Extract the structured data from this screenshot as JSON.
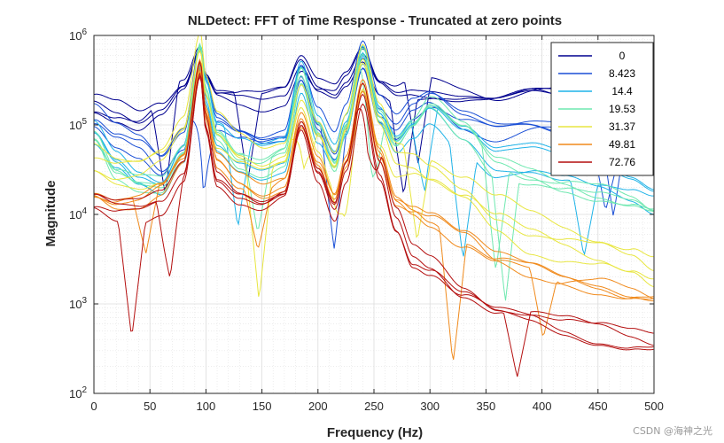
{
  "chart_data": {
    "type": "line",
    "title": "NLDetect: FFT of Time Response - Truncated at zero points",
    "xlabel": "Frequency (Hz)",
    "ylabel": "Magnitude",
    "xlim": [
      0,
      500
    ],
    "ylim_log10": [
      2,
      6
    ],
    "xscale": "linear",
    "yscale": "log",
    "grid": true,
    "minor_grid": true,
    "x_ticks": [
      0,
      50,
      100,
      150,
      200,
      250,
      300,
      350,
      400,
      450,
      500
    ],
    "x_tick_labels": [
      "0",
      "50",
      "100",
      "150",
      "200",
      "250",
      "300",
      "350",
      "400",
      "450",
      "500"
    ],
    "y_ticks": [
      2,
      3,
      4,
      5,
      6
    ],
    "y_tick_labels": [
      {
        "base": "10",
        "exp": "2"
      },
      {
        "base": "10",
        "exp": "3"
      },
      {
        "base": "10",
        "exp": "4"
      },
      {
        "base": "10",
        "exp": "5"
      },
      {
        "base": "10",
        "exp": "6"
      }
    ],
    "legend_position": "top-right",
    "legend": [
      {
        "label": "0",
        "color": "#00008f"
      },
      {
        "label": "8.423",
        "color": "#1a4fd6"
      },
      {
        "label": "14.4",
        "color": "#1fb3e8"
      },
      {
        "label": "19.53",
        "color": "#6fe8b0"
      },
      {
        "label": "31.37",
        "color": "#e8e640"
      },
      {
        "label": "49.81",
        "color": "#f08a1c"
      },
      {
        "label": "72.76",
        "color": "#b40f0f"
      }
    ],
    "series_note": "Approximate log10(magnitude) envelopes per amplitude level, sampled at the x positions below",
    "x": [
      0,
      20,
      40,
      60,
      80,
      95,
      100,
      110,
      130,
      150,
      170,
      185,
      200,
      215,
      225,
      240,
      255,
      270,
      285,
      300,
      330,
      360,
      390,
      420,
      450,
      480,
      500
    ],
    "series": [
      {
        "name": "0",
        "color": "#00008f",
        "values": [
          5.3,
          5.2,
          5.1,
          5.25,
          5.5,
          5.9,
          5.6,
          5.4,
          5.35,
          5.3,
          5.35,
          5.7,
          5.45,
          5.4,
          5.55,
          5.85,
          5.5,
          5.4,
          5.45,
          5.45,
          5.4,
          5.35,
          5.4,
          5.35,
          5.3,
          5.25,
          5.05
        ]
      },
      {
        "name": "8.423",
        "color": "#1a4fd6",
        "values": [
          5.1,
          4.9,
          4.8,
          4.6,
          4.9,
          5.85,
          5.5,
          5.1,
          4.95,
          4.85,
          4.9,
          5.6,
          5.1,
          4.8,
          5.1,
          5.8,
          5.2,
          5.0,
          5.2,
          5.3,
          5.1,
          5.0,
          5.05,
          5.0,
          4.9,
          4.8,
          4.7
        ]
      },
      {
        "name": "14.4",
        "color": "#1fb3e8",
        "values": [
          4.9,
          4.6,
          4.4,
          4.3,
          4.7,
          5.8,
          5.4,
          4.9,
          4.7,
          4.6,
          4.65,
          5.5,
          4.9,
          4.6,
          4.95,
          5.75,
          5.1,
          4.8,
          5.0,
          5.2,
          4.9,
          4.6,
          4.6,
          4.5,
          4.4,
          4.3,
          4.2
        ]
      },
      {
        "name": "19.53",
        "color": "#6fe8b0",
        "values": [
          4.7,
          4.3,
          4.2,
          4.2,
          4.6,
          5.8,
          5.3,
          4.8,
          4.5,
          4.4,
          4.5,
          5.4,
          4.8,
          4.4,
          4.85,
          5.7,
          5.0,
          4.7,
          4.9,
          5.1,
          4.8,
          4.4,
          4.3,
          4.2,
          4.1,
          4.0,
          3.9
        ]
      },
      {
        "name": "31.37",
        "color": "#e8e640",
        "values": [
          4.6,
          4.5,
          4.5,
          4.6,
          4.9,
          5.8,
          5.3,
          4.9,
          4.7,
          4.6,
          4.7,
          5.35,
          4.9,
          4.5,
          4.9,
          5.65,
          5.0,
          4.6,
          4.6,
          4.5,
          4.3,
          4.0,
          3.8,
          3.7,
          3.6,
          3.45,
          3.3
        ]
      },
      {
        "name": "49.81",
        "color": "#f08a1c",
        "values": [
          4.4,
          4.3,
          4.3,
          4.4,
          4.7,
          5.75,
          5.2,
          4.7,
          4.5,
          4.4,
          4.5,
          5.2,
          4.7,
          4.3,
          4.7,
          5.55,
          4.8,
          4.3,
          4.2,
          4.1,
          3.85,
          3.6,
          3.5,
          3.4,
          3.35,
          3.25,
          3.2
        ]
      },
      {
        "name": "72.76",
        "color": "#b40f0f",
        "values": [
          4.2,
          4.1,
          4.1,
          4.2,
          4.55,
          5.7,
          5.1,
          4.5,
          4.3,
          4.2,
          4.3,
          5.05,
          4.5,
          4.1,
          4.55,
          5.45,
          4.6,
          4.0,
          3.6,
          3.5,
          3.2,
          3.0,
          2.95,
          2.85,
          2.75,
          2.65,
          2.6
        ]
      }
    ]
  },
  "watermark": "CSDN @海神之光"
}
